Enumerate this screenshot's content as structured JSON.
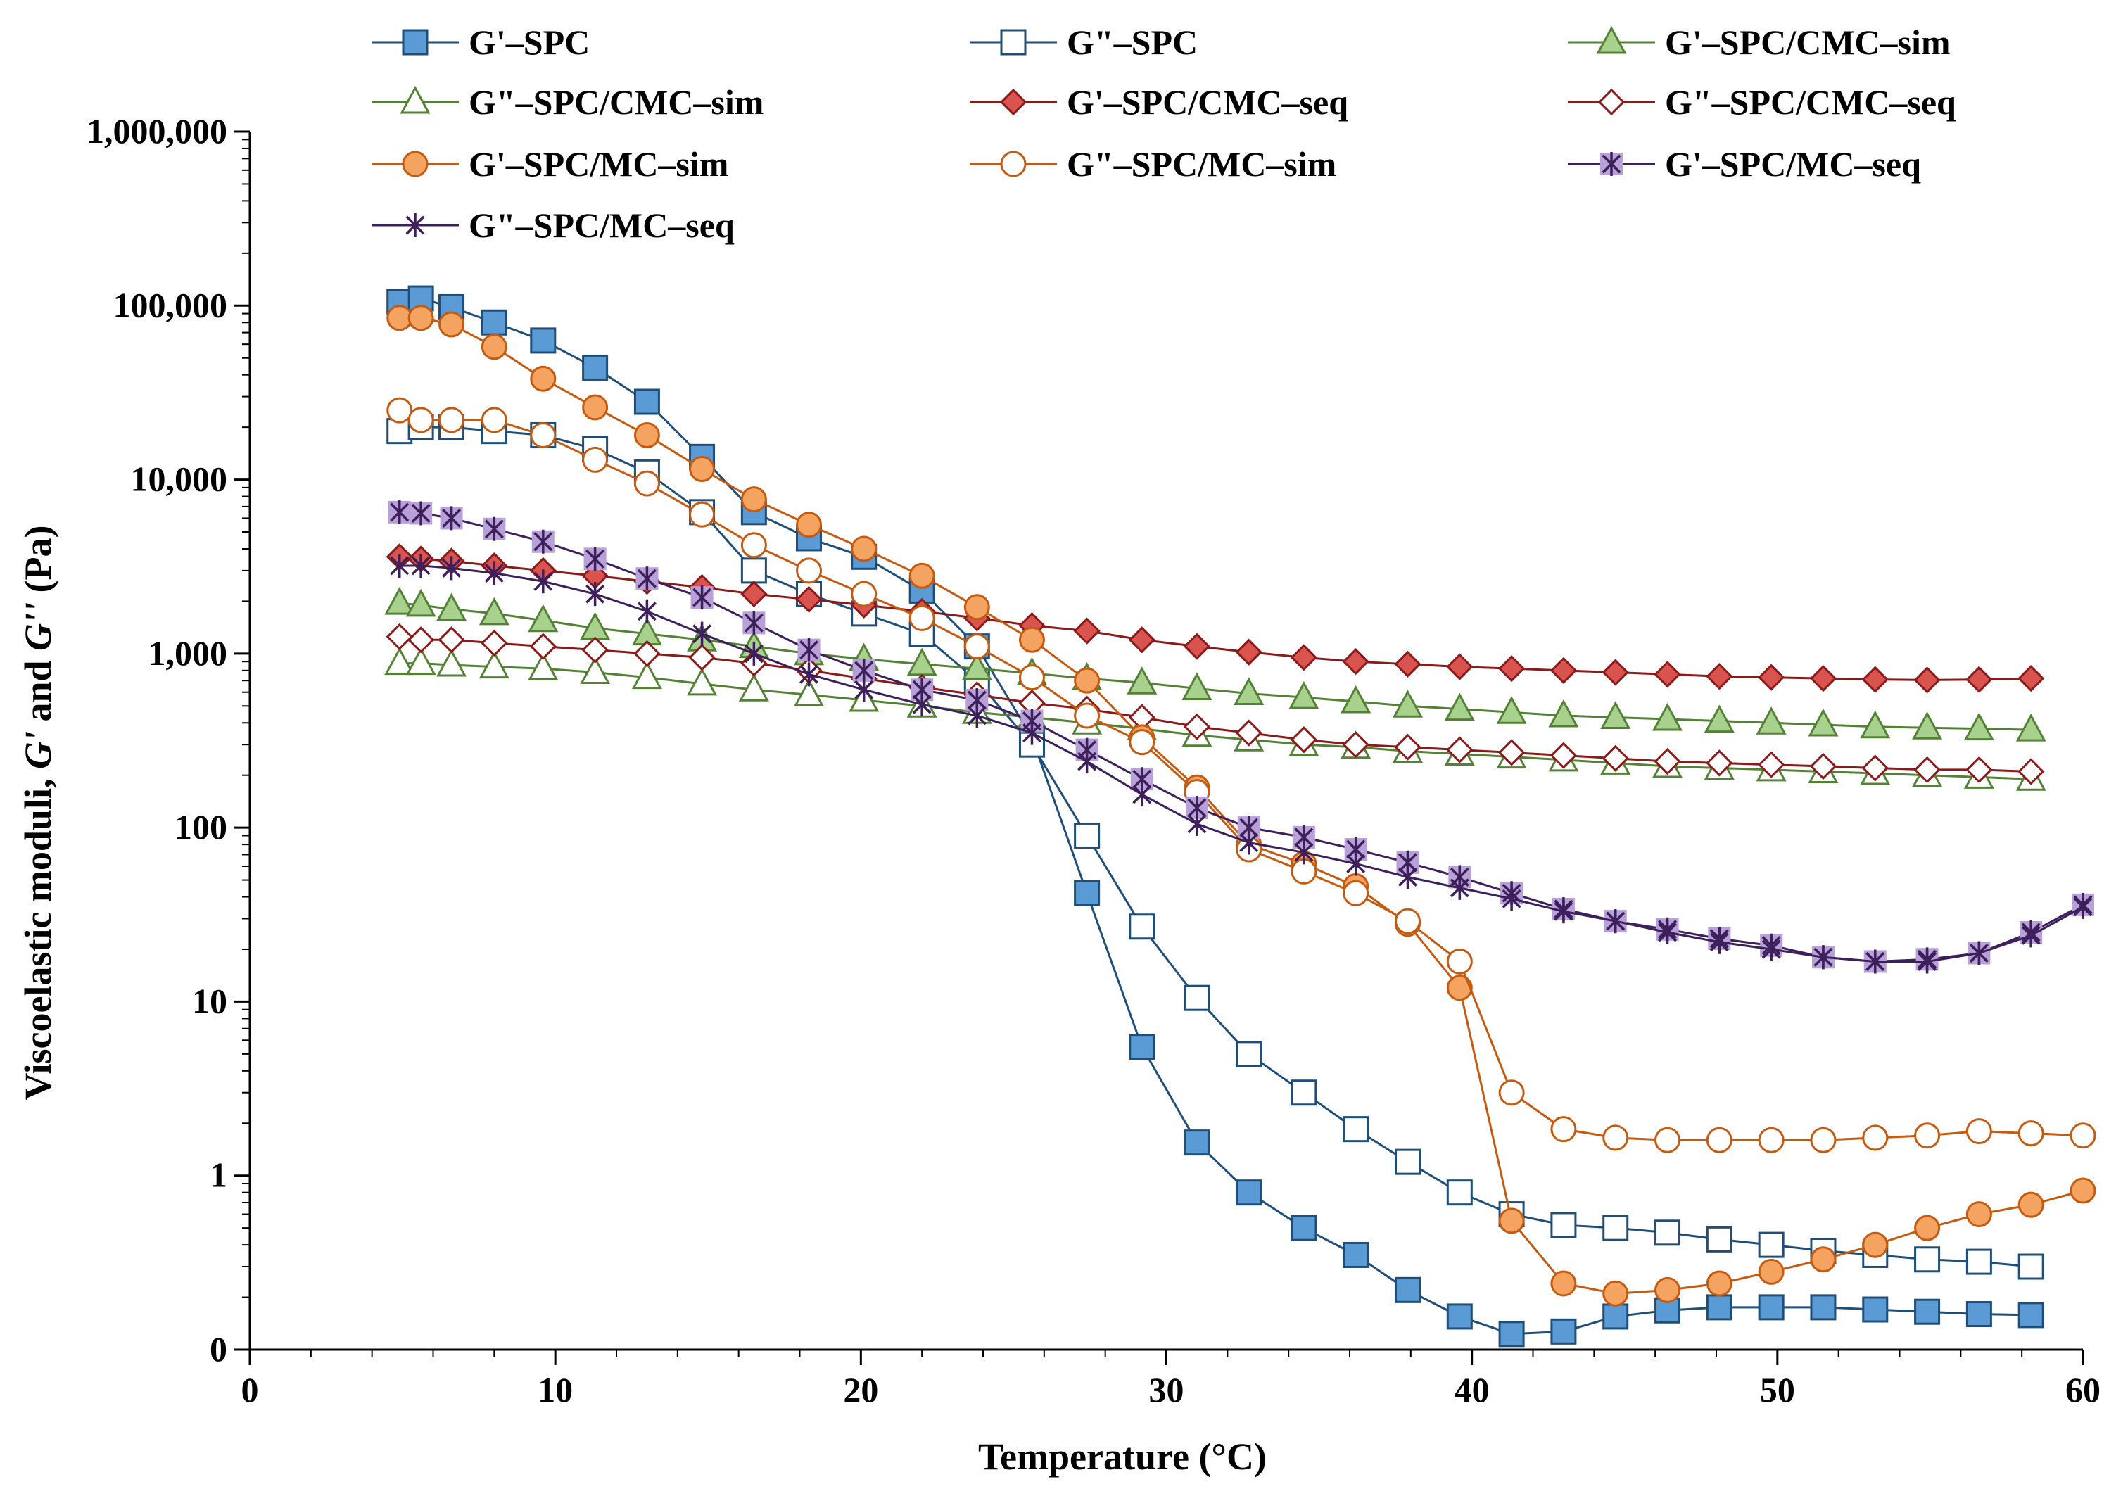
{
  "chart_data": {
    "type": "line",
    "title": "",
    "xlabel": "Temperature (°C)",
    "ylabel_prefix": "Viscoelastic moduli, ",
    "ylabel_g1": "G'",
    "ylabel_and": " and ",
    "ylabel_g2": "G''",
    "ylabel_unit": " (Pa)",
    "xscale": "linear",
    "yscale": "log",
    "xlim": [
      0,
      60
    ],
    "ylim": [
      0.1,
      1000000
    ],
    "xticks": [
      0,
      10,
      20,
      30,
      40,
      50,
      60
    ],
    "xtick_labels": [
      "0",
      "10",
      "20",
      "30",
      "40",
      "50",
      "60"
    ],
    "yticks": [
      0.1,
      1,
      10,
      100,
      1000,
      10000,
      100000,
      1000000
    ],
    "ytick_labels": [
      "0",
      "1",
      "10",
      "100",
      "1,000",
      "10,000",
      "100,000",
      "1,000,000"
    ],
    "grid": false,
    "legend_position": "top",
    "colors": {
      "spc": "#1f4e79",
      "spc_fill": "#5b9bd5",
      "cmc_sim": "#548235",
      "cmc_sim_fill": "#a9d18e",
      "cmc_seq": "#8b1a1a",
      "cmc_seq_fill": "#d9534f",
      "mc_sim": "#c55a11",
      "mc_sim_fill": "#f4a460",
      "mc_seq": "#3d1f5c",
      "mc_seq_fill": "#b8a0d8"
    },
    "series": [
      {
        "name": "G'–SPC",
        "marker": "square",
        "filled": true,
        "color": "#1f4e79",
        "fill": "#5b9bd5",
        "x": [
          4.9,
          5.6,
          6.6,
          8,
          9.6,
          11.3,
          13,
          14.8,
          16.5,
          18.3,
          20.1,
          22,
          23.8,
          25.6,
          27.4,
          29.2,
          31,
          32.7,
          34.5,
          36.2,
          37.9,
          39.6,
          41.3,
          43,
          44.7,
          46.4,
          48.1,
          49.8,
          51.5,
          53.2,
          54.9,
          56.6,
          58.3
        ],
        "y": [
          105000,
          110000,
          98000,
          80000,
          63000,
          44000,
          28000,
          13500,
          6500,
          4600,
          3600,
          2300,
          1100,
          330,
          42,
          5.5,
          1.55,
          0.8,
          0.5,
          0.35,
          0.22,
          0.155,
          0.123,
          0.127,
          0.155,
          0.168,
          0.175,
          0.175,
          0.175,
          0.17,
          0.165,
          0.16,
          0.158
        ]
      },
      {
        "name": "G\"–SPC",
        "marker": "square",
        "filled": false,
        "color": "#1f4e79",
        "fill": "#ffffff",
        "x": [
          4.9,
          5.6,
          6.6,
          8,
          9.6,
          11.3,
          13,
          14.8,
          16.5,
          18.3,
          20.1,
          22,
          23.8,
          25.6,
          27.4,
          29.2,
          31,
          32.7,
          34.5,
          36.2,
          37.9,
          39.6,
          41.3,
          43,
          44.7,
          46.4,
          48.1,
          49.8,
          51.5,
          53.2,
          54.9,
          56.6,
          58.3
        ],
        "y": [
          19000,
          20000,
          20000,
          19000,
          18000,
          15000,
          11000,
          6500,
          3000,
          2200,
          1700,
          1300,
          700,
          300,
          90,
          27,
          10.5,
          5,
          3,
          1.85,
          1.2,
          0.8,
          0.6,
          0.52,
          0.5,
          0.47,
          0.43,
          0.4,
          0.37,
          0.35,
          0.33,
          0.32,
          0.3
        ]
      },
      {
        "name": "G'–SPC/CMC–sim",
        "marker": "triangle",
        "filled": true,
        "color": "#548235",
        "fill": "#a9d18e",
        "x": [
          4.9,
          5.6,
          6.6,
          8,
          9.6,
          11.3,
          13,
          14.8,
          16.5,
          18.3,
          20.1,
          22,
          23.8,
          25.6,
          27.4,
          29.2,
          31,
          32.7,
          34.5,
          36.2,
          37.9,
          39.6,
          41.3,
          43,
          44.7,
          46.4,
          48.1,
          49.8,
          51.5,
          53.2,
          54.9,
          56.6,
          58.3
        ],
        "y": [
          1950,
          1900,
          1800,
          1700,
          1550,
          1400,
          1300,
          1200,
          1100,
          1000,
          930,
          870,
          820,
          770,
          720,
          680,
          630,
          590,
          560,
          530,
          500,
          480,
          460,
          440,
          430,
          420,
          410,
          400,
          390,
          380,
          375,
          370,
          365
        ]
      },
      {
        "name": "G\"–SPC/CMC–sim",
        "marker": "triangle",
        "filled": false,
        "color": "#548235",
        "fill": "#ffffff",
        "x": [
          4.9,
          5.6,
          6.6,
          8,
          9.6,
          11.3,
          13,
          14.8,
          16.5,
          18.3,
          20.1,
          22,
          23.8,
          25.6,
          27.4,
          29.2,
          31,
          32.7,
          34.5,
          36.2,
          37.9,
          39.6,
          41.3,
          43,
          44.7,
          46.4,
          48.1,
          49.8,
          51.5,
          53.2,
          54.9,
          56.6,
          58.3
        ],
        "y": [
          880,
          880,
          860,
          840,
          820,
          780,
          730,
          670,
          620,
          580,
          540,
          500,
          460,
          430,
          400,
          370,
          340,
          320,
          300,
          290,
          275,
          265,
          255,
          245,
          235,
          225,
          220,
          215,
          210,
          205,
          200,
          195,
          190
        ]
      },
      {
        "name": "G'–SPC/CMC–seq",
        "marker": "diamond",
        "filled": true,
        "color": "#8b1a1a",
        "fill": "#d9534f",
        "x": [
          4.9,
          5.6,
          6.6,
          8,
          9.6,
          11.3,
          13,
          14.8,
          16.5,
          18.3,
          20.1,
          22,
          23.8,
          25.6,
          27.4,
          29.2,
          31,
          32.7,
          34.5,
          36.2,
          37.9,
          39.6,
          41.3,
          43,
          44.7,
          46.4,
          48.1,
          49.8,
          51.5,
          53.2,
          54.9,
          56.6,
          58.3
        ],
        "y": [
          3600,
          3500,
          3400,
          3200,
          3000,
          2800,
          2600,
          2400,
          2200,
          2050,
          1900,
          1750,
          1600,
          1450,
          1350,
          1200,
          1100,
          1020,
          950,
          900,
          870,
          840,
          820,
          800,
          780,
          760,
          740,
          730,
          720,
          710,
          705,
          710,
          720
        ]
      },
      {
        "name": "G\"–SPC/CMC–seq",
        "marker": "diamond",
        "filled": false,
        "color": "#8b1a1a",
        "fill": "#ffffff",
        "x": [
          4.9,
          5.6,
          6.6,
          8,
          9.6,
          11.3,
          13,
          14.8,
          16.5,
          18.3,
          20.1,
          22,
          23.8,
          25.6,
          27.4,
          29.2,
          31,
          32.7,
          34.5,
          36.2,
          37.9,
          39.6,
          41.3,
          43,
          44.7,
          46.4,
          48.1,
          49.8,
          51.5,
          53.2,
          54.9,
          56.6,
          58.3
        ],
        "y": [
          1250,
          1200,
          1200,
          1150,
          1100,
          1050,
          1000,
          950,
          880,
          800,
          720,
          640,
          580,
          520,
          480,
          430,
          380,
          350,
          320,
          300,
          290,
          280,
          270,
          260,
          250,
          240,
          235,
          230,
          225,
          220,
          215,
          215,
          210
        ]
      },
      {
        "name": "G'–SPC/MC–sim",
        "marker": "circle",
        "filled": true,
        "color": "#c55a11",
        "fill": "#f4a460",
        "x": [
          4.9,
          5.6,
          6.6,
          8,
          9.6,
          11.3,
          13,
          14.8,
          16.5,
          18.3,
          20.1,
          22,
          23.8,
          25.6,
          27.4,
          29.2,
          31,
          32.7,
          34.5,
          36.2,
          37.9,
          39.6,
          41.3,
          43,
          44.7,
          46.4,
          48.1,
          49.8,
          51.5,
          53.2,
          54.9,
          56.6,
          58.3,
          60
        ],
        "y": [
          85000,
          85000,
          78000,
          58000,
          38000,
          26000,
          18000,
          11500,
          7700,
          5500,
          4000,
          2800,
          1850,
          1200,
          700,
          330,
          170,
          80,
          62,
          46,
          28,
          12,
          0.55,
          0.24,
          0.21,
          0.22,
          0.24,
          0.28,
          0.33,
          0.4,
          0.5,
          0.6,
          0.68,
          0.82
        ]
      },
      {
        "name": "G\"–SPC/MC–sim",
        "marker": "circle",
        "filled": false,
        "color": "#c55a11",
        "fill": "#ffffff",
        "x": [
          4.9,
          5.6,
          6.6,
          8,
          9.6,
          11.3,
          13,
          14.8,
          16.5,
          18.3,
          20.1,
          22,
          23.8,
          25.6,
          27.4,
          29.2,
          31,
          32.7,
          34.5,
          36.2,
          37.9,
          39.6,
          41.3,
          43,
          44.7,
          46.4,
          48.1,
          49.8,
          51.5,
          53.2,
          54.9,
          56.6,
          58.3,
          60
        ],
        "y": [
          25000,
          22000,
          22000,
          22000,
          18000,
          13000,
          9500,
          6300,
          4200,
          3000,
          2200,
          1600,
          1100,
          730,
          440,
          310,
          160,
          75,
          56,
          42,
          29,
          17,
          3,
          1.85,
          1.65,
          1.6,
          1.6,
          1.6,
          1.6,
          1.65,
          1.7,
          1.8,
          1.75,
          1.7
        ]
      },
      {
        "name": "G'–SPC/MC–seq",
        "marker": "asterisk-square",
        "filled": true,
        "color": "#3d1f5c",
        "fill": "#b8a0d8",
        "x": [
          4.9,
          5.6,
          6.6,
          8,
          9.6,
          11.3,
          13,
          14.8,
          16.5,
          18.3,
          20.1,
          22,
          23.8,
          25.6,
          27.4,
          29.2,
          31,
          32.7,
          34.5,
          36.2,
          37.9,
          39.6,
          41.3,
          43,
          44.7,
          46.4,
          48.1,
          49.8,
          51.5,
          53.2,
          54.9,
          56.6,
          58.3,
          60
        ],
        "y": [
          6500,
          6400,
          6000,
          5200,
          4400,
          3500,
          2700,
          2100,
          1500,
          1050,
          800,
          620,
          540,
          410,
          280,
          190,
          130,
          100,
          88,
          75,
          63,
          52,
          42,
          34,
          29,
          26,
          23,
          21,
          18,
          17,
          17.5,
          19,
          25,
          36
        ]
      },
      {
        "name": "G\"–SPC/MC–seq",
        "marker": "asterisk",
        "filled": false,
        "color": "#3d1f5c",
        "fill": "#ffffff",
        "x": [
          4.9,
          5.6,
          6.6,
          8,
          9.6,
          11.3,
          13,
          14.8,
          16.5,
          18.3,
          20.1,
          22,
          23.8,
          25.6,
          27.4,
          29.2,
          31,
          32.7,
          34.5,
          36.2,
          37.9,
          39.6,
          41.3,
          43,
          44.7,
          46.4,
          48.1,
          49.8,
          51.5,
          53.2,
          54.9,
          56.6,
          58.3,
          60
        ],
        "y": [
          3200,
          3200,
          3100,
          2900,
          2600,
          2200,
          1750,
          1300,
          1000,
          760,
          620,
          510,
          440,
          350,
          240,
          155,
          105,
          82,
          72,
          62,
          52,
          45,
          39,
          33,
          29,
          25,
          22,
          20,
          18,
          17,
          17,
          19,
          24,
          35
        ]
      }
    ]
  }
}
